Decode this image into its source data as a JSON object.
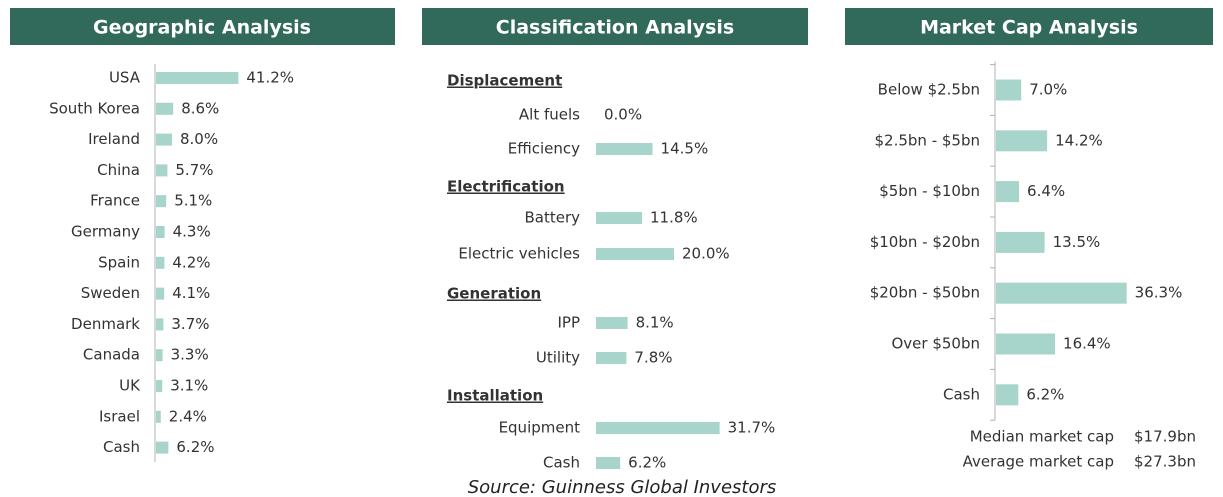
{
  "chart_data": [
    {
      "type": "bar",
      "title": "Geographic Analysis",
      "orientation": "horizontal",
      "color": "#a8d5cb",
      "categories": [
        "USA",
        "South Korea",
        "Ireland",
        "China",
        "France",
        "Germany",
        "Spain",
        "Sweden",
        "Denmark",
        "Canada",
        "UK",
        "Israel",
        "Cash"
      ],
      "values": [
        41.2,
        8.6,
        8.0,
        5.7,
        5.1,
        4.3,
        4.2,
        4.1,
        3.7,
        3.3,
        3.1,
        2.4,
        6.2
      ],
      "value_labels": [
        "41.2%",
        "8.6%",
        "8.0%",
        "5.7%",
        "5.1%",
        "4.3%",
        "4.2%",
        "4.1%",
        "3.7%",
        "3.3%",
        "3.1%",
        "2.4%",
        "6.2%"
      ]
    },
    {
      "type": "grouped-bar",
      "title": "Classification Analysis",
      "orientation": "horizontal",
      "color": "#a8d5cb",
      "groups": [
        {
          "name": "Displacement",
          "categories": [
            "Alt fuels",
            "Efficiency"
          ],
          "values": [
            0.0,
            14.5
          ],
          "value_labels": [
            "0.0%",
            "14.5%"
          ]
        },
        {
          "name": "Electrification",
          "categories": [
            "Battery",
            "Electric vehicles"
          ],
          "values": [
            11.8,
            20.0
          ],
          "value_labels": [
            "11.8%",
            "20.0%"
          ]
        },
        {
          "name": "Generation",
          "categories": [
            "IPP",
            "Utility"
          ],
          "values": [
            8.1,
            7.8
          ],
          "value_labels": [
            "8.1%",
            "7.8%"
          ]
        },
        {
          "name": "Installation",
          "categories": [
            "Equipment",
            "Cash"
          ],
          "values": [
            31.7,
            6.2
          ],
          "value_labels": [
            "31.7%",
            "6.2%"
          ]
        }
      ]
    },
    {
      "type": "bar",
      "title": "Market Cap Analysis",
      "orientation": "horizontal",
      "color": "#a8d5cb",
      "categories": [
        "Below $2.5bn",
        "$2.5bn - $5bn",
        "$5bn - $10bn",
        "$10bn - $20bn",
        "$20bn - $50bn",
        "Over $50bn",
        "Cash"
      ],
      "values": [
        7.0,
        14.2,
        6.4,
        13.5,
        36.3,
        16.4,
        6.2
      ],
      "value_labels": [
        "7.0%",
        "14.2%",
        "6.4%",
        "13.5%",
        "36.3%",
        "16.4%",
        "6.2%"
      ],
      "annotations": [
        {
          "label": "Median market cap",
          "value": "$17.9bn"
        },
        {
          "label": "Average market cap",
          "value": "$27.3bn"
        }
      ]
    }
  ],
  "source": "Source: Guinness Global Investors"
}
